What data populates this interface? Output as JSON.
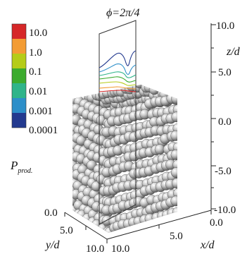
{
  "title": "ϕ=2π/4",
  "legend": {
    "entries": [
      {
        "label": "10.0",
        "color": "#d62728"
      },
      {
        "label": "1.0",
        "color": "#f39c34"
      },
      {
        "label": "0.1",
        "color": "#b5cc18"
      },
      {
        "label": "0.01",
        "color": "#3cab2e"
      },
      {
        "label": "0.001",
        "color": "#2fb48a"
      },
      {
        "label": "0.0001",
        "color": "#2d8fc9"
      },
      {
        "label": "",
        "color": "#233a8f"
      }
    ],
    "quantity": "P",
    "quantity_subscript": "prod."
  },
  "z_axis": {
    "label": "z/d",
    "ticks": [
      "10.0",
      "5.0",
      "0.0",
      "-5.0",
      "-10.0"
    ]
  },
  "y_axis": {
    "label": "y/d",
    "ticks": [
      "0.0",
      "5.0",
      "10.0"
    ]
  },
  "x_axis": {
    "label": "x/d",
    "ticks": [
      "10.0",
      "5.0",
      "0.0"
    ]
  },
  "packing": {
    "sphere_color": "#b8b8b8"
  }
}
